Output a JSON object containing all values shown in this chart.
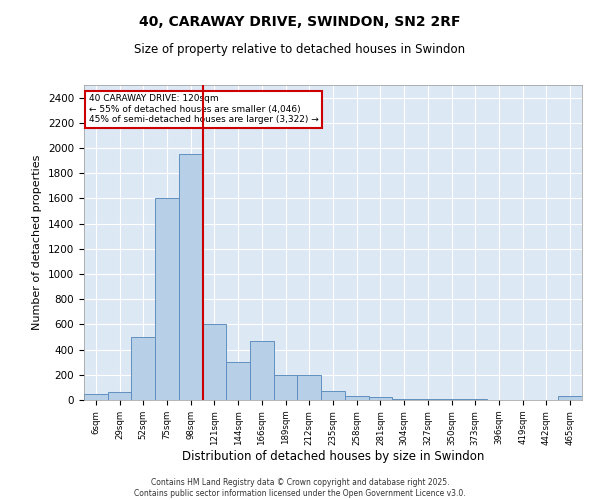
{
  "title_line1": "40, CARAWAY DRIVE, SWINDON, SN2 2RF",
  "title_line2": "Size of property relative to detached houses in Swindon",
  "xlabel": "Distribution of detached houses by size in Swindon",
  "ylabel": "Number of detached properties",
  "categories": [
    "6sqm",
    "29sqm",
    "52sqm",
    "75sqm",
    "98sqm",
    "121sqm",
    "144sqm",
    "166sqm",
    "189sqm",
    "212sqm",
    "235sqm",
    "258sqm",
    "281sqm",
    "304sqm",
    "327sqm",
    "350sqm",
    "373sqm",
    "396sqm",
    "419sqm",
    "442sqm",
    "465sqm"
  ],
  "values": [
    50,
    60,
    500,
    1600,
    1950,
    600,
    300,
    470,
    195,
    195,
    75,
    30,
    20,
    10,
    10,
    5,
    5,
    0,
    0,
    0,
    30
  ],
  "bar_color": "#b8cfe8",
  "bar_edge_color": "#6090c0",
  "vline_x": 5,
  "vline_color": "#cc0000",
  "annotation_text": "40 CARAWAY DRIVE: 120sqm\n← 55% of detached houses are smaller (4,046)\n45% of semi-detached houses are larger (3,322) →",
  "annotation_box_color": "#cc0000",
  "ylim": [
    0,
    2500
  ],
  "yticks": [
    0,
    200,
    400,
    600,
    800,
    1000,
    1200,
    1400,
    1600,
    1800,
    2000,
    2200,
    2400
  ],
  "background_color": "#dde8f5",
  "grid_color": "#ffffff",
  "footer_line1": "Contains HM Land Registry data © Crown copyright and database right 2025.",
  "footer_line2": "Contains public sector information licensed under the Open Government Licence v3.0."
}
